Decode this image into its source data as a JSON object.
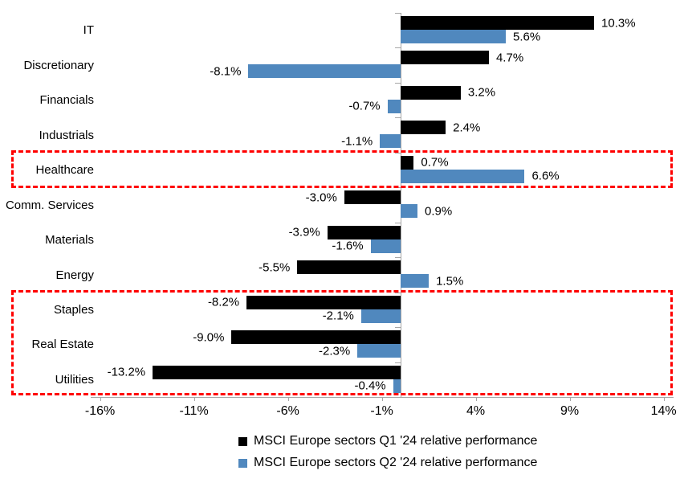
{
  "chart_data": {
    "type": "bar",
    "orientation": "horizontal-grouped",
    "categories": [
      "IT",
      "Discretionary",
      "Financials",
      "Industrials",
      "Healthcare",
      "Comm. Services",
      "Materials",
      "Energy",
      "Staples",
      "Real Estate",
      "Utilities"
    ],
    "series": [
      {
        "name": "MSCI Europe sectors Q1 '24 relative performance",
        "color": "#000000",
        "values": [
          10.3,
          4.7,
          3.2,
          2.4,
          0.7,
          -3.0,
          -3.9,
          -5.5,
          -8.2,
          -9.0,
          -13.2
        ],
        "value_labels": [
          "10.3%",
          "4.7%",
          "3.2%",
          "2.4%",
          "0.7%",
          "-3.0%",
          "-3.9%",
          "-5.5%",
          "-8.2%",
          "-9.0%",
          "-13.2%"
        ]
      },
      {
        "name": "MSCI Europe sectors Q2 '24 relative performance",
        "color": "#5088BE",
        "values": [
          5.6,
          -8.1,
          -0.7,
          -1.1,
          6.6,
          0.9,
          -1.6,
          1.5,
          -2.1,
          -2.3,
          -0.4
        ],
        "value_labels": [
          "5.6%",
          "-8.1%",
          "-0.7%",
          "-1.1%",
          "6.6%",
          "0.9%",
          "-1.6%",
          "1.5%",
          "-2.1%",
          "-2.3%",
          "-0.4%"
        ]
      }
    ],
    "x_axis": {
      "tick_labels": [
        "-16%",
        "-11%",
        "-6%",
        "-1%",
        "4%",
        "9%",
        "14%"
      ],
      "tick_values": [
        -16,
        -11,
        -6,
        -1,
        4,
        9,
        14
      ],
      "min": -16.5,
      "max": 14.5
    },
    "grid": "off",
    "legend_position": "bottom",
    "highlight_color": "#FF0000",
    "highlights": [
      {
        "label": "Healthcare",
        "rows": [
          4,
          4
        ]
      },
      {
        "label": "Staples / Real Estate / Utilities",
        "rows": [
          8,
          10
        ]
      }
    ]
  }
}
